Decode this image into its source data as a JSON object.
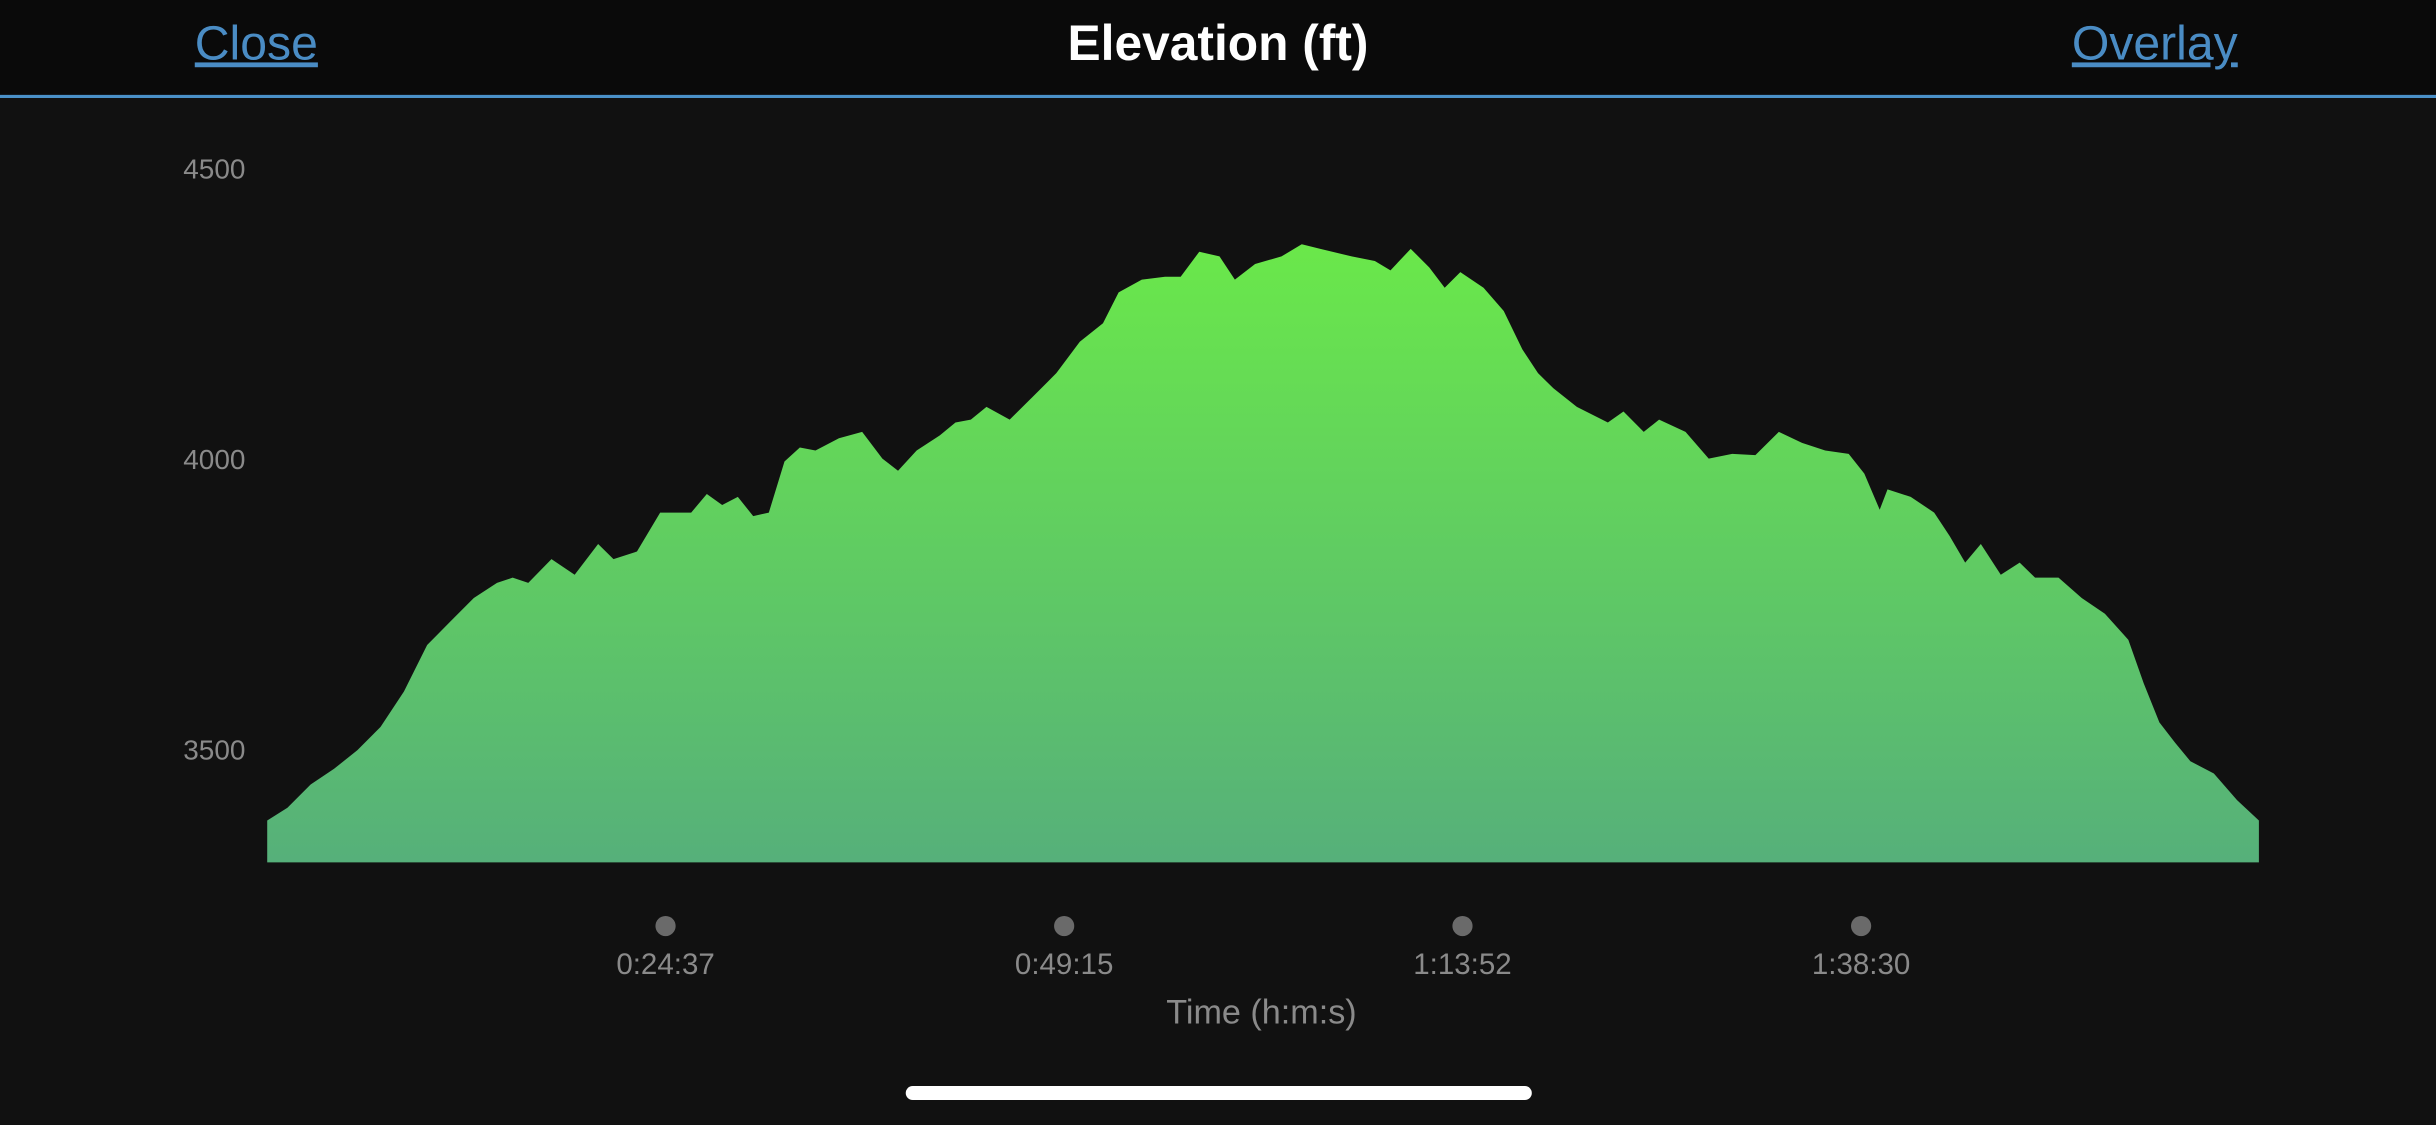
{
  "header": {
    "close": "Close",
    "title": "Elevation (ft)",
    "overlay": "Overlay"
  },
  "chart_data": {
    "type": "area",
    "x_label": "Time (h:m:s)",
    "xlim": [
      0,
      7385
    ],
    "xticks": [
      {
        "value": 1477,
        "label": "0:24:37"
      },
      {
        "value": 2955,
        "label": "0:49:15"
      },
      {
        "value": 4432,
        "label": "1:13:52"
      },
      {
        "value": 5910,
        "label": "1:38:30"
      }
    ],
    "ylim": [
      3310,
      4500
    ],
    "yticks": [
      3500,
      4000,
      4500
    ],
    "color_top": "#6ae84a",
    "color_bottom": "#56b07a",
    "x": [
      0,
      75,
      161,
      248,
      334,
      420,
      507,
      593,
      680,
      766,
      852,
      910,
      968,
      1054,
      1140,
      1227,
      1284,
      1371,
      1457,
      1572,
      1630,
      1687,
      1745,
      1802,
      1860,
      1918,
      1975,
      2033,
      2120,
      2206,
      2281,
      2339,
      2408,
      2494,
      2552,
      2609,
      2667,
      2753,
      2840,
      2926,
      3013,
      3099,
      3157,
      3243,
      3329,
      3387,
      3456,
      3531,
      3588,
      3663,
      3761,
      3836,
      3905,
      4021,
      4107,
      4165,
      4240,
      4309,
      4366,
      4424,
      4510,
      4585,
      4654,
      4712,
      4769,
      4856,
      4971,
      5029,
      5104,
      5161,
      5259,
      5345,
      5432,
      5518,
      5605,
      5691,
      5777,
      5864,
      5922,
      5979,
      6008,
      6094,
      6181,
      6238,
      6296,
      6354,
      6428,
      6498,
      6555,
      6642,
      6728,
      6814,
      6901,
      6958,
      7016,
      7074,
      7131,
      7218,
      7304,
      7385
    ],
    "values": [
      3382,
      3404,
      3444,
      3471,
      3503,
      3543,
      3604,
      3684,
      3725,
      3765,
      3791,
      3800,
      3791,
      3832,
      3805,
      3858,
      3832,
      3845,
      3912,
      3912,
      3944,
      3925,
      3939,
      3906,
      3912,
      4000,
      4024,
      4019,
      4040,
      4051,
      4005,
      3984,
      4019,
      4045,
      4067,
      4072,
      4094,
      4072,
      4112,
      4152,
      4206,
      4238,
      4291,
      4313,
      4318,
      4318,
      4361,
      4353,
      4313,
      4340,
      4353,
      4374,
      4366,
      4353,
      4345,
      4329,
      4366,
      4334,
      4299,
      4326,
      4299,
      4259,
      4193,
      4152,
      4126,
      4094,
      4067,
      4086,
      4051,
      4072,
      4051,
      4005,
      4013,
      4011,
      4051,
      4032,
      4019,
      4013,
      3979,
      3917,
      3952,
      3939,
      3912,
      3872,
      3826,
      3858,
      3805,
      3826,
      3800,
      3800,
      3765,
      3738,
      3693,
      3618,
      3551,
      3516,
      3484,
      3463,
      3417,
      3382
    ]
  }
}
